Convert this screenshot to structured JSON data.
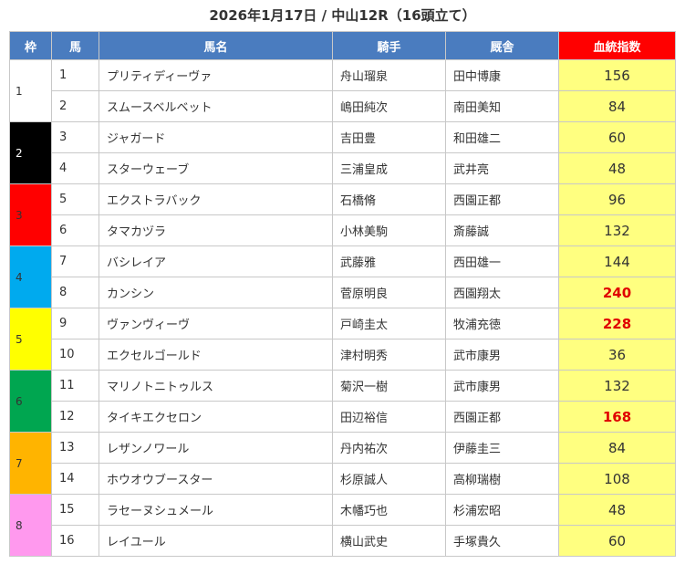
{
  "title": "2026年1月17日 / 中山12R（16頭立て）",
  "headers": [
    "枠",
    "馬",
    "馬名",
    "騎手",
    "厩舎",
    "血統指数"
  ],
  "frames": [
    {
      "label": "1",
      "color": "#ffffff",
      "text_color": "#333333"
    },
    {
      "label": "2",
      "color": "#000000",
      "text_color": "#ffffff"
    },
    {
      "label": "3",
      "color": "#ff0000",
      "text_color": "#333333"
    },
    {
      "label": "4",
      "color": "#00aaee",
      "text_color": "#333333"
    },
    {
      "label": "5",
      "color": "#ffff00",
      "text_color": "#333333"
    },
    {
      "label": "6",
      "color": "#00a650",
      "text_color": "#333333"
    },
    {
      "label": "7",
      "color": "#ffb400",
      "text_color": "#333333"
    },
    {
      "label": "8",
      "color": "#ff99ee",
      "text_color": "#333333"
    }
  ],
  "rows": [
    {
      "num": "1",
      "horse": "プリティディーヴァ",
      "jockey": "舟山瑠泉",
      "trainer": "田中博康",
      "score": "156",
      "highlight": false
    },
    {
      "num": "2",
      "horse": "スムースベルベット",
      "jockey": "嶋田純次",
      "trainer": "南田美知",
      "score": "84",
      "highlight": false
    },
    {
      "num": "3",
      "horse": "ジャガード",
      "jockey": "吉田豊",
      "trainer": "和田雄二",
      "score": "60",
      "highlight": false
    },
    {
      "num": "4",
      "horse": "スターウェーブ",
      "jockey": "三浦皇成",
      "trainer": "武井亮",
      "score": "48",
      "highlight": false
    },
    {
      "num": "5",
      "horse": "エクストラバック",
      "jockey": "石橋脩",
      "trainer": "西園正都",
      "score": "96",
      "highlight": false
    },
    {
      "num": "6",
      "horse": "タマカヅラ",
      "jockey": "小林美駒",
      "trainer": "斎藤誠",
      "score": "132",
      "highlight": false
    },
    {
      "num": "7",
      "horse": "バシレイア",
      "jockey": "武藤雅",
      "trainer": "西田雄一",
      "score": "144",
      "highlight": false
    },
    {
      "num": "8",
      "horse": "カンシン",
      "jockey": "菅原明良",
      "trainer": "西園翔太",
      "score": "240",
      "highlight": true
    },
    {
      "num": "9",
      "horse": "ヴァンヴィーヴ",
      "jockey": "戸崎圭太",
      "trainer": "牧浦充徳",
      "score": "228",
      "highlight": true
    },
    {
      "num": "10",
      "horse": "エクセルゴールド",
      "jockey": "津村明秀",
      "trainer": "武市康男",
      "score": "36",
      "highlight": false
    },
    {
      "num": "11",
      "horse": "マリノトニトゥルス",
      "jockey": "菊沢一樹",
      "trainer": "武市康男",
      "score": "132",
      "highlight": false
    },
    {
      "num": "12",
      "horse": "タイキエクセロン",
      "jockey": "田辺裕信",
      "trainer": "西園正都",
      "score": "168",
      "highlight": true
    },
    {
      "num": "13",
      "horse": "レザンノワール",
      "jockey": "丹内祐次",
      "trainer": "伊藤圭三",
      "score": "84",
      "highlight": false
    },
    {
      "num": "14",
      "horse": "ホウオウブースター",
      "jockey": "杉原誠人",
      "trainer": "高柳瑞樹",
      "score": "108",
      "highlight": false
    },
    {
      "num": "15",
      "horse": "ラセーヌシュメール",
      "jockey": "木幡巧也",
      "trainer": "杉浦宏昭",
      "score": "48",
      "highlight": false
    },
    {
      "num": "16",
      "horse": "レイユール",
      "jockey": "横山武史",
      "trainer": "手塚貴久",
      "score": "60",
      "highlight": false
    }
  ]
}
